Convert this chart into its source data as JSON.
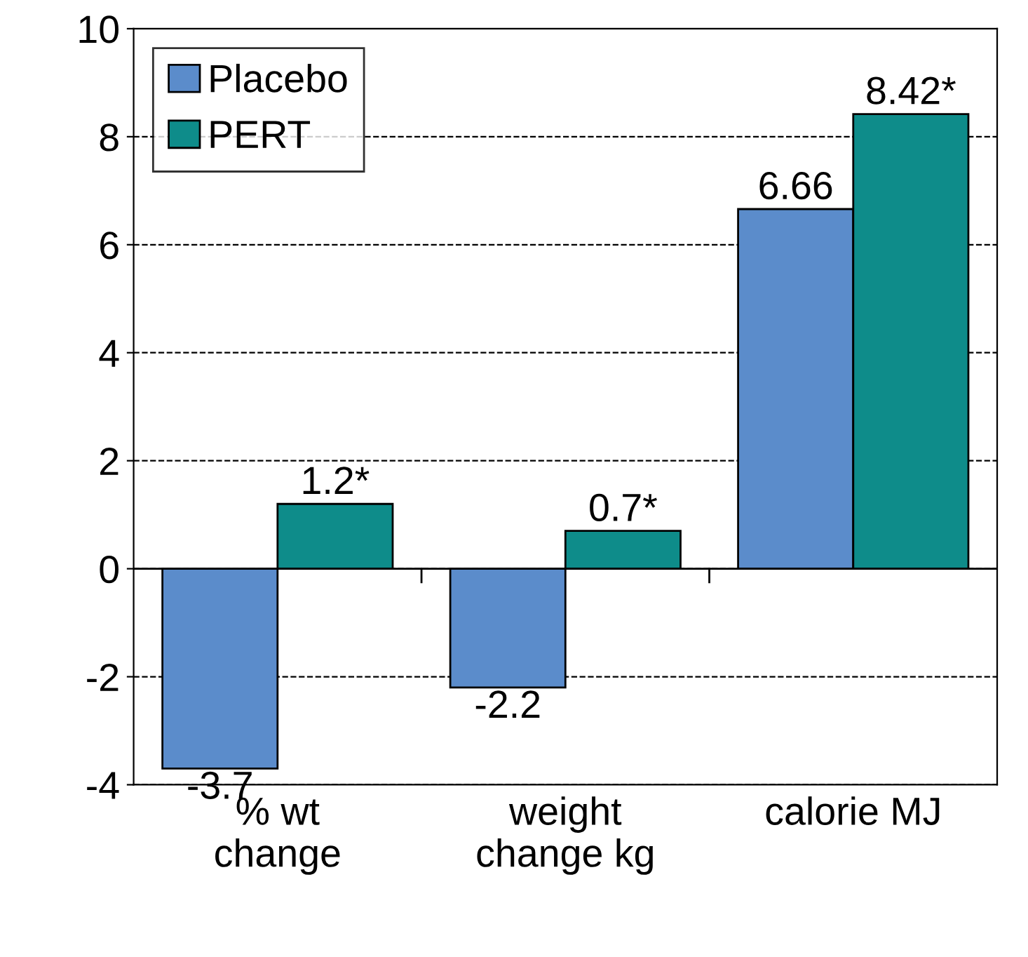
{
  "chart_data": {
    "type": "bar",
    "categories": [
      "% wt\nchange",
      "weight\nchange kg",
      "calorie MJ"
    ],
    "series": [
      {
        "name": "Placebo",
        "color": "#5b8ccb",
        "values": [
          -3.7,
          -2.2,
          6.66
        ],
        "value_labels": [
          "-3.7",
          "-2.2",
          "6.66"
        ]
      },
      {
        "name": "PERT",
        "color": "#0e8c8a",
        "values": [
          1.2,
          0.7,
          8.42
        ],
        "value_labels": [
          "1.2*",
          "0.7*",
          "8.42*"
        ]
      }
    ],
    "ylim": [
      -4,
      10
    ],
    "yticks": [
      -4,
      -2,
      0,
      2,
      4,
      6,
      8,
      10
    ],
    "grid": "y",
    "legend": "top left"
  }
}
